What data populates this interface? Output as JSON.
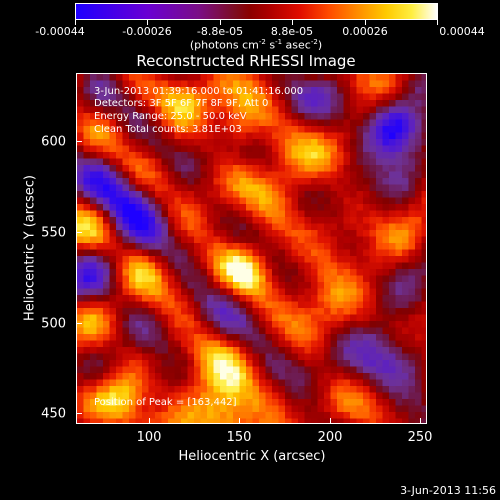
{
  "colorbar": {
    "tick_labels": [
      "-0.00044",
      "-0.00026",
      "-8.8e-05",
      "8.8e-05",
      "0.00026",
      "0.00044"
    ],
    "units": "(photons cm⁻² s⁻¹ asec⁻²)",
    "units_parts": {
      "prefix": "(photons cm",
      "e1": "-2",
      "s": " s",
      "e2": "-1",
      "asec": " asec",
      "e3": "-2",
      "suffix": ")"
    }
  },
  "title": "Reconstructed RHESSI Image",
  "annotations": {
    "time": "3-Jun-2013 01:39:16.000 to 01:41:16.000",
    "detectors": "Detectors: 3F 5F 6F 7F 8F 9F, Att 0",
    "energy": "Energy Range: 25.0 - 50.0 keV",
    "clean": "Clean     Total counts: 3.81E+03",
    "peak": "Position of Peak = [163,442]"
  },
  "axes": {
    "xlabel": "Heliocentric X (arcsec)",
    "ylabel": "Heliocentric Y (arcsec)",
    "x_ticks": [
      "100",
      "150",
      "200",
      "250"
    ],
    "y_ticks": [
      "450",
      "500",
      "550",
      "600"
    ],
    "xlim": [
      58,
      252
    ],
    "ylim": [
      444,
      638
    ]
  },
  "footer": {
    "date": "3-Jun-2013 11:56"
  },
  "colors": {
    "background": "#000000",
    "foreground": "#ffffff"
  }
}
